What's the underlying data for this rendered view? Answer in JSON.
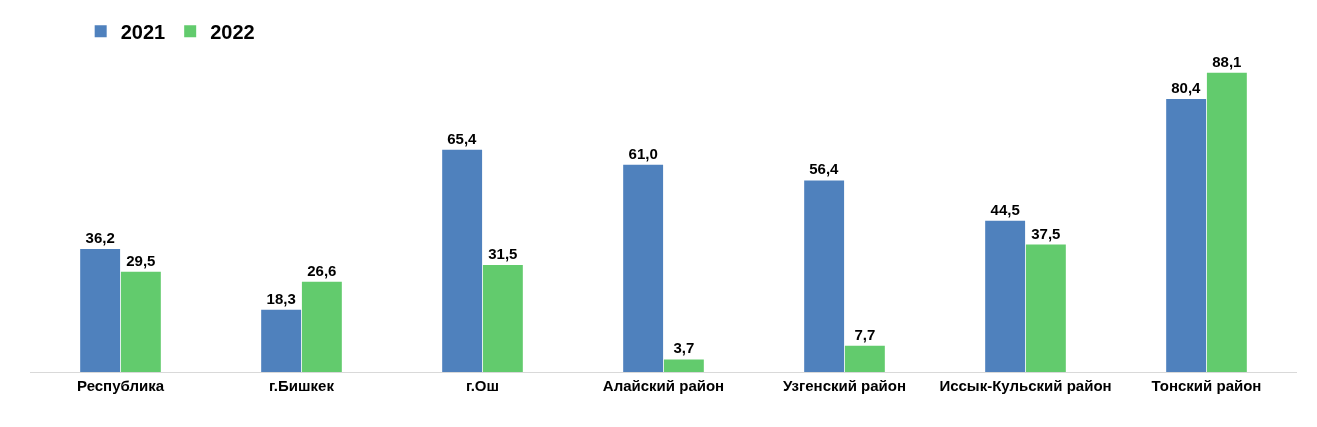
{
  "chart_data": {
    "type": "bar",
    "categories": [
      "Республика",
      "г.Бишкек",
      "г.Ош",
      "Алайский район",
      "Узгенский район",
      "Иссык-Кульский район",
      "Тонский район"
    ],
    "series": [
      {
        "name": "2021",
        "color": "#4f81bd",
        "values": [
          36.2,
          18.3,
          65.4,
          61.0,
          56.4,
          44.5,
          80.4
        ],
        "value_labels": [
          "36,2",
          "18,3",
          "65,4",
          "61,0",
          "56,4",
          "44,5",
          "80,4"
        ]
      },
      {
        "name": "2022",
        "color": "#62cb6d",
        "values": [
          29.5,
          26.6,
          31.5,
          3.7,
          7.7,
          37.5,
          88.1
        ],
        "value_labels": [
          "29,5",
          "26,6",
          "31,5",
          "3,7",
          "7,7",
          "37,5",
          "88,1"
        ]
      }
    ],
    "legend": "top left"
  }
}
